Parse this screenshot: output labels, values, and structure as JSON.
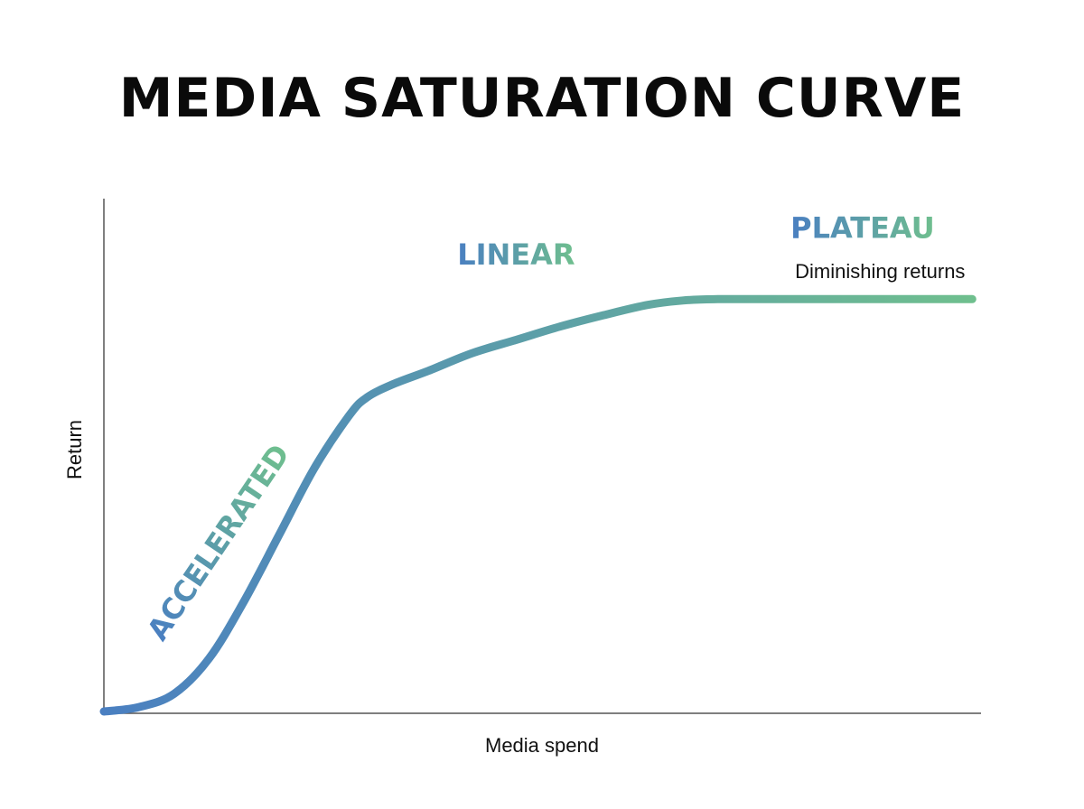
{
  "chart_data": {
    "type": "line",
    "title": "MEDIA SATURATION CURVE",
    "xlabel": "Media spend",
    "ylabel": "Return",
    "xlim": [
      0,
      100
    ],
    "ylim": [
      0,
      100
    ],
    "grid": false,
    "series": [
      {
        "x": [
          0,
          4,
          8,
          12,
          16,
          20,
          24,
          28,
          30,
          33,
          37,
          42,
          47,
          52,
          57,
          62,
          66,
          70,
          76,
          82,
          88,
          94,
          99
        ],
        "y": [
          0,
          1,
          4,
          12,
          25,
          40,
          55,
          67,
          71,
          74,
          77,
          81,
          84,
          87,
          89.6,
          91.9,
          92.9,
          93.2,
          93.2,
          93.2,
          93.2,
          93.2,
          93.2
        ]
      }
    ],
    "annotations": [
      {
        "text": "ACCELERATED",
        "x": 14,
        "y": 37
      },
      {
        "text": "LINEAR",
        "x": 47,
        "y": 101
      },
      {
        "text": "PLATEAU",
        "x": 86.5,
        "y": 107
      },
      {
        "text": "Diminishing returns",
        "x": 88.5,
        "y": 98
      }
    ]
  },
  "colors": {
    "gradient_start": "#4a7fc1",
    "gradient_end": "#6fbf8e",
    "axis": "#555555"
  }
}
